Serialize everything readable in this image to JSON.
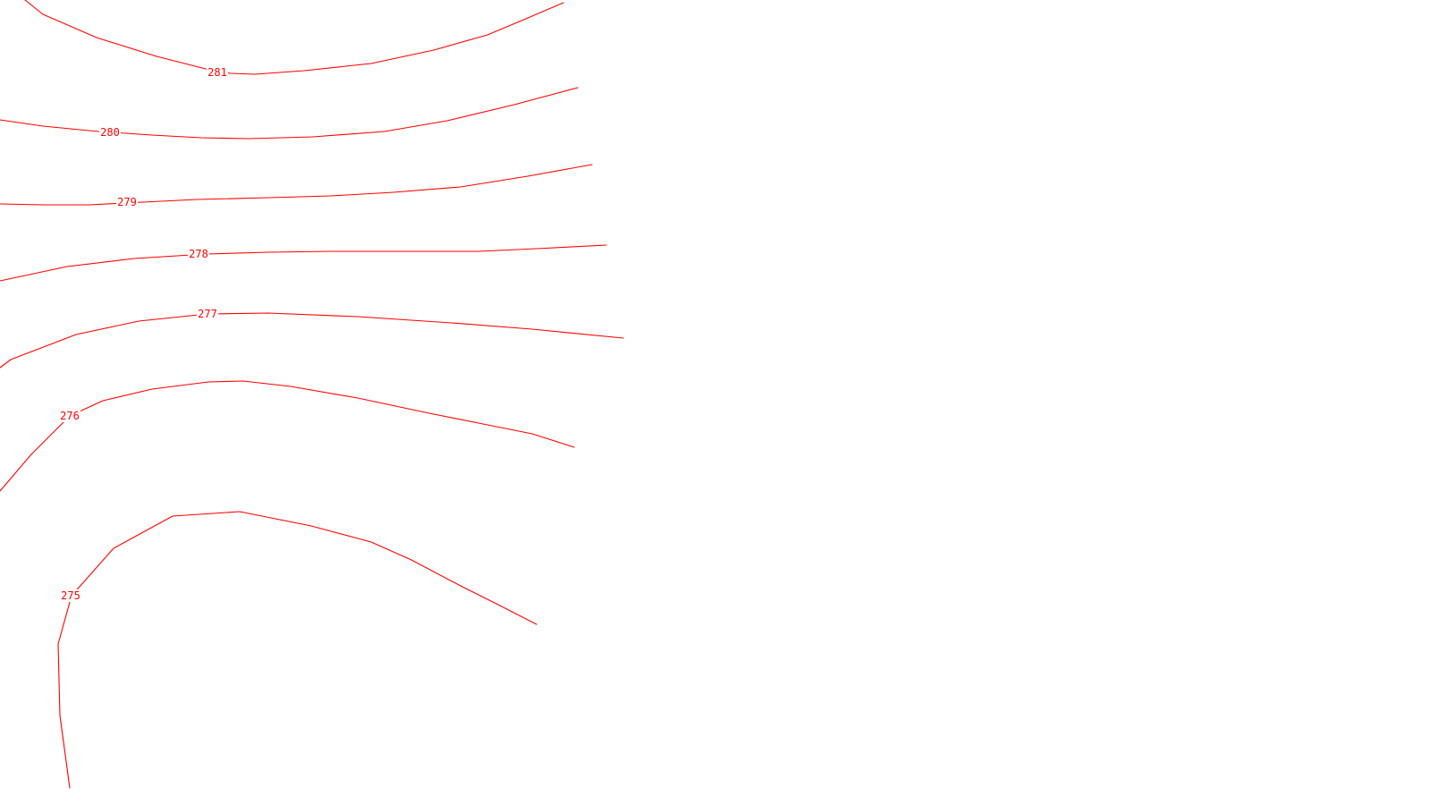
{
  "map": {
    "line_color": "#ff0000",
    "background_color": "#ffffff",
    "contours": [
      {
        "level": "281"
      },
      {
        "level": "280"
      },
      {
        "level": "279"
      },
      {
        "level": "278"
      },
      {
        "level": "277"
      },
      {
        "level": "276"
      },
      {
        "level": "275"
      }
    ]
  }
}
